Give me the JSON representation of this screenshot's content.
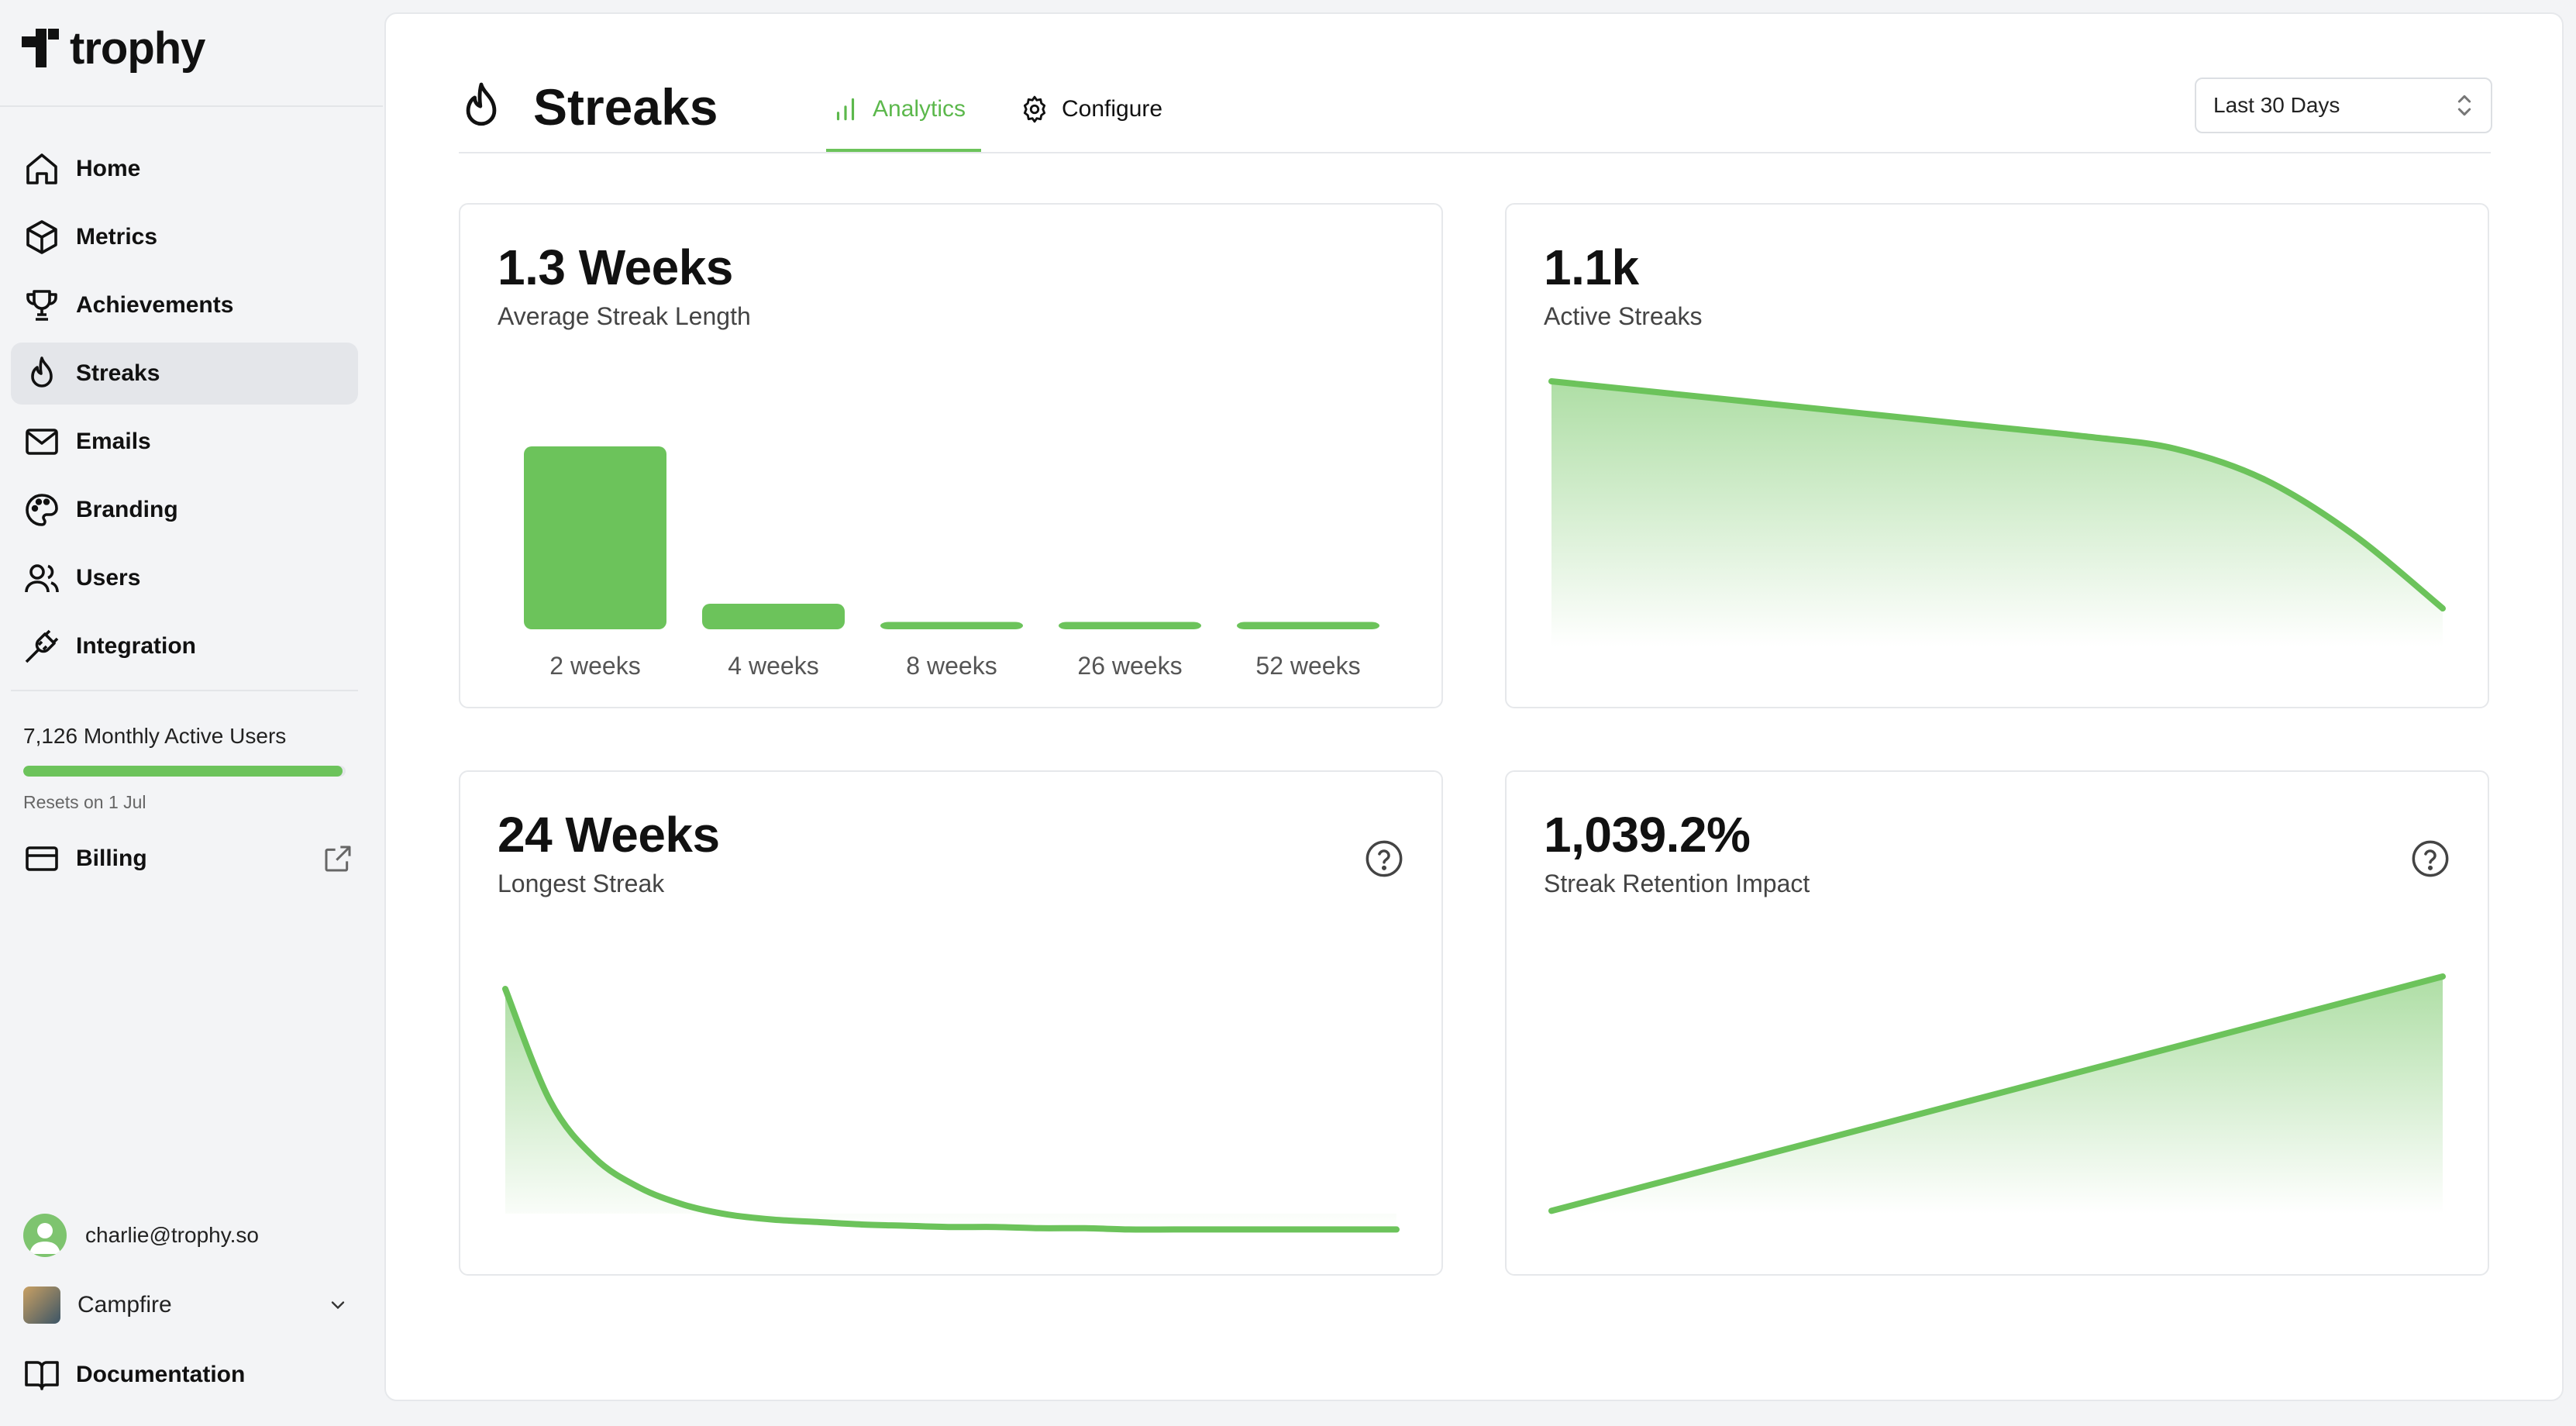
{
  "app": {
    "logo_text": "trophy"
  },
  "sidebar": {
    "items": [
      {
        "label": "Home",
        "icon": "home-icon"
      },
      {
        "label": "Metrics",
        "icon": "cube-icon"
      },
      {
        "label": "Achievements",
        "icon": "trophy-icon"
      },
      {
        "label": "Streaks",
        "icon": "flame-icon",
        "active": true
      },
      {
        "label": "Emails",
        "icon": "mail-icon"
      },
      {
        "label": "Branding",
        "icon": "palette-icon"
      },
      {
        "label": "Users",
        "icon": "users-icon"
      },
      {
        "label": "Integration",
        "icon": "plug-icon"
      }
    ],
    "usage": {
      "text": "7,126 Monthly Active Users",
      "progress_fraction": 0.99,
      "reset_text": "Resets on 1 Jul"
    },
    "billing": {
      "label": "Billing",
      "icon": "credit-card-icon",
      "external_icon": "external-link-icon"
    },
    "user": {
      "email": "charlie@trophy.so"
    },
    "org": {
      "name": "Campfire"
    },
    "documentation": {
      "label": "Documentation",
      "icon": "book-icon"
    }
  },
  "header": {
    "title": "Streaks",
    "tabs": [
      {
        "label": "Analytics",
        "icon": "bar-chart-icon",
        "active": true
      },
      {
        "label": "Configure",
        "icon": "gear-icon",
        "active": false
      }
    ],
    "date_range": {
      "selected": "Last 30 Days"
    }
  },
  "colors": {
    "accent": "#6cc35b",
    "accent_text": "#5cb84c"
  },
  "cards": [
    {
      "value": "1.3 Weeks",
      "label": "Average Streak Length",
      "has_help": false
    },
    {
      "value": "1.1k",
      "label": "Active Streaks",
      "has_help": false
    },
    {
      "value": "24 Weeks",
      "label": "Longest Streak",
      "has_help": true
    },
    {
      "value": "1,039.2%",
      "label": "Streak Retention Impact",
      "has_help": true
    }
  ],
  "chart_data": [
    {
      "type": "bar",
      "categories": [
        "2 weeks",
        "4 weeks",
        "8 weeks",
        "26 weeks",
        "52 weeks"
      ],
      "values": [
        100,
        14,
        4,
        4,
        4
      ]
    },
    {
      "type": "area",
      "x": [
        0,
        1,
        2,
        3,
        4,
        5,
        6,
        7,
        8,
        9,
        10
      ],
      "values": [
        1.0,
        0.97,
        0.94,
        0.91,
        0.88,
        0.85,
        0.82,
        0.78,
        0.68,
        0.5,
        0.26
      ]
    },
    {
      "type": "area",
      "x": [
        0,
        1,
        2,
        3,
        4,
        5,
        6,
        7,
        8,
        9,
        10,
        11,
        12,
        13,
        14,
        15,
        16,
        17,
        18,
        19,
        20
      ],
      "values": [
        1.0,
        0.55,
        0.32,
        0.2,
        0.13,
        0.09,
        0.07,
        0.06,
        0.05,
        0.045,
        0.04,
        0.04,
        0.035,
        0.035,
        0.03,
        0.03,
        0.03,
        0.03,
        0.03,
        0.03,
        0.03
      ]
    },
    {
      "type": "area",
      "x": [
        0,
        1
      ],
      "values": [
        0.1,
        1.0
      ]
    }
  ]
}
